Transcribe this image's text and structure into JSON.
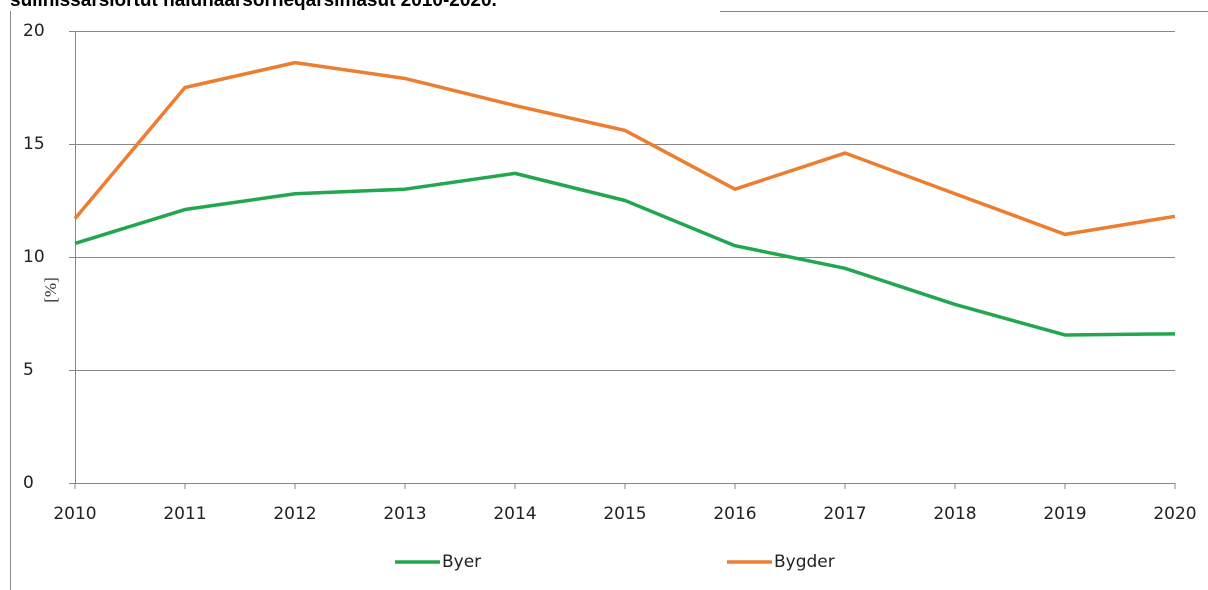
{
  "chart_data": {
    "type": "line",
    "title": "sulinissarsiortut nalunaarsorneqarsimasut 2010-2020.",
    "y_label": "[%]",
    "x": [
      2010,
      2011,
      2012,
      2013,
      2014,
      2015,
      2016,
      2017,
      2018,
      2019,
      2020
    ],
    "xlim": [
      2010,
      2020
    ],
    "xticks": [
      2010,
      2011,
      2012,
      2013,
      2014,
      2015,
      2016,
      2017,
      2018,
      2019,
      2020
    ],
    "ylim": [
      0,
      20
    ],
    "yticks": [
      0,
      5,
      10,
      15,
      20
    ],
    "grid": true,
    "legend": "bottom",
    "series": [
      {
        "name": "Byer",
        "color": "#22a64e",
        "values": [
          10.6,
          12.1,
          12.8,
          13.0,
          13.7,
          12.5,
          10.5,
          9.5,
          7.9,
          6.55,
          6.6
        ]
      },
      {
        "name": "Bygder",
        "color": "#ed7d31",
        "values": [
          11.7,
          17.5,
          18.6,
          17.9,
          16.7,
          15.6,
          13.0,
          14.6,
          12.8,
          11.0,
          11.8
        ]
      }
    ]
  }
}
